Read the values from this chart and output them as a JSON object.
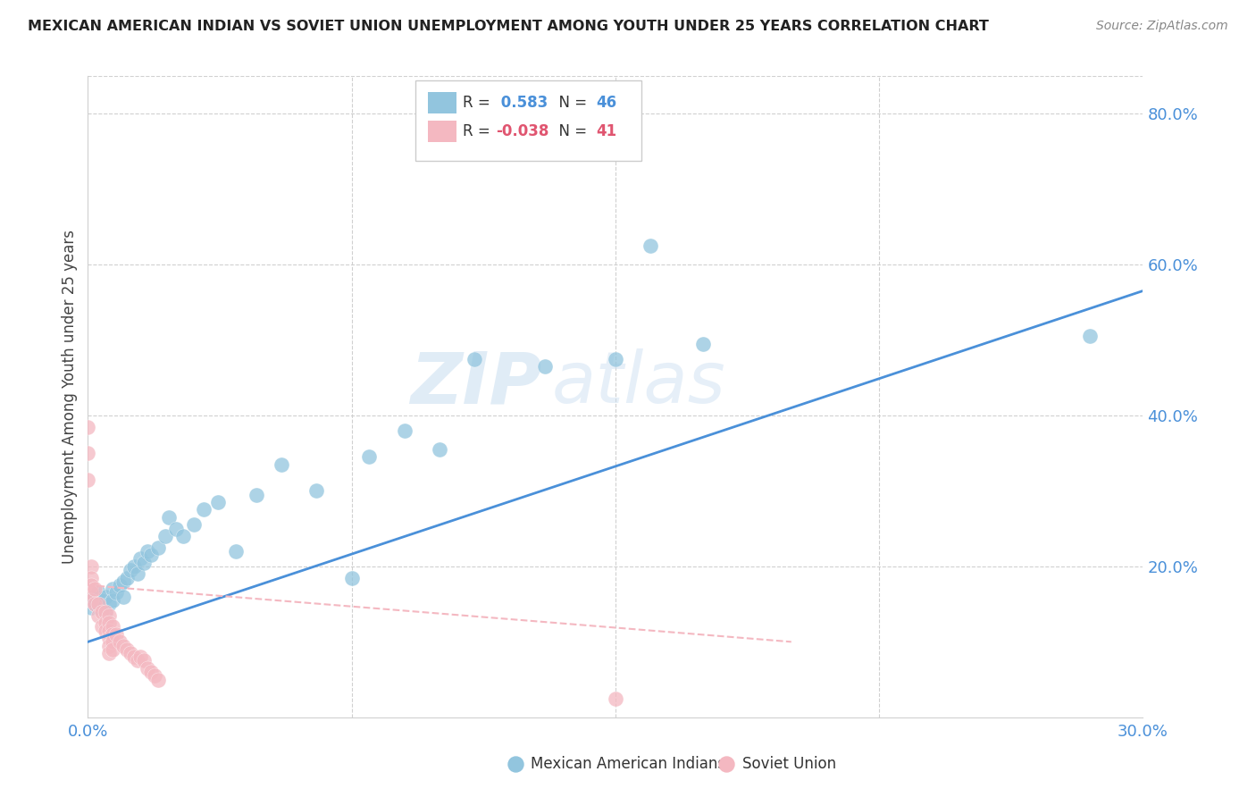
{
  "title": "MEXICAN AMERICAN INDIAN VS SOVIET UNION UNEMPLOYMENT AMONG YOUTH UNDER 25 YEARS CORRELATION CHART",
  "source": "Source: ZipAtlas.com",
  "ylabel": "Unemployment Among Youth under 25 years",
  "xlim": [
    0.0,
    0.3
  ],
  "ylim": [
    0.0,
    0.85
  ],
  "yticks_right": [
    0.2,
    0.4,
    0.6,
    0.8
  ],
  "ytick_right_labels": [
    "20.0%",
    "40.0%",
    "60.0%",
    "80.0%"
  ],
  "blue_R": 0.583,
  "blue_N": 46,
  "pink_R": -0.038,
  "pink_N": 41,
  "blue_color": "#92c5de",
  "pink_color": "#f4b8c1",
  "blue_line_color": "#4a90d9",
  "pink_line_color": "#f4b8c1",
  "watermark_zip": "ZIP",
  "watermark_atlas": "atlas",
  "blue_points_x": [
    0.001,
    0.001,
    0.002,
    0.002,
    0.003,
    0.003,
    0.004,
    0.005,
    0.005,
    0.006,
    0.007,
    0.007,
    0.008,
    0.009,
    0.01,
    0.01,
    0.011,
    0.012,
    0.013,
    0.014,
    0.015,
    0.016,
    0.017,
    0.018,
    0.02,
    0.022,
    0.023,
    0.025,
    0.027,
    0.03,
    0.033,
    0.037,
    0.042,
    0.048,
    0.055,
    0.065,
    0.075,
    0.08,
    0.09,
    0.1,
    0.11,
    0.13,
    0.15,
    0.16,
    0.175,
    0.285
  ],
  "blue_points_y": [
    0.145,
    0.155,
    0.15,
    0.16,
    0.145,
    0.165,
    0.155,
    0.14,
    0.16,
    0.15,
    0.17,
    0.155,
    0.165,
    0.175,
    0.18,
    0.16,
    0.185,
    0.195,
    0.2,
    0.19,
    0.21,
    0.205,
    0.22,
    0.215,
    0.225,
    0.24,
    0.265,
    0.25,
    0.24,
    0.255,
    0.275,
    0.285,
    0.22,
    0.295,
    0.335,
    0.3,
    0.185,
    0.345,
    0.38,
    0.355,
    0.475,
    0.465,
    0.475,
    0.625,
    0.495,
    0.505
  ],
  "pink_points_x": [
    0.0,
    0.0,
    0.0,
    0.001,
    0.001,
    0.001,
    0.001,
    0.001,
    0.002,
    0.002,
    0.003,
    0.003,
    0.004,
    0.004,
    0.005,
    0.005,
    0.005,
    0.006,
    0.006,
    0.006,
    0.006,
    0.006,
    0.006,
    0.007,
    0.007,
    0.007,
    0.007,
    0.008,
    0.009,
    0.01,
    0.011,
    0.012,
    0.013,
    0.014,
    0.015,
    0.016,
    0.017,
    0.018,
    0.019,
    0.02,
    0.15
  ],
  "pink_points_y": [
    0.385,
    0.35,
    0.315,
    0.2,
    0.185,
    0.175,
    0.165,
    0.155,
    0.17,
    0.15,
    0.15,
    0.135,
    0.14,
    0.12,
    0.14,
    0.125,
    0.115,
    0.135,
    0.125,
    0.115,
    0.105,
    0.095,
    0.085,
    0.12,
    0.11,
    0.1,
    0.09,
    0.11,
    0.1,
    0.095,
    0.09,
    0.085,
    0.08,
    0.075,
    0.08,
    0.075,
    0.065,
    0.06,
    0.055,
    0.05,
    0.025
  ],
  "blue_line_x": [
    0.0,
    0.3
  ],
  "blue_line_y": [
    0.1,
    0.565
  ],
  "pink_line_x": [
    0.0,
    0.2
  ],
  "pink_line_y": [
    0.175,
    0.1
  ]
}
